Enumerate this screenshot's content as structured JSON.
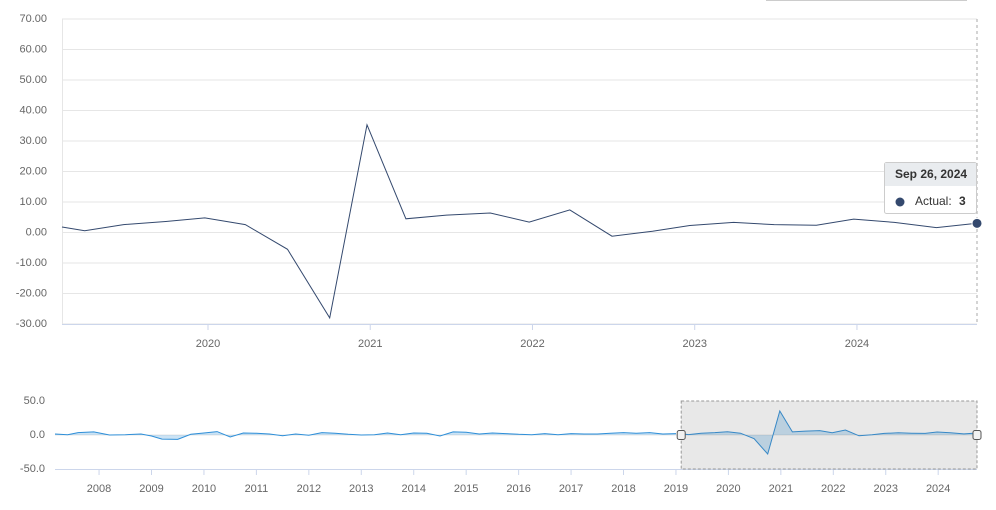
{
  "chart_data": [
    {
      "type": "line",
      "color": "#34496e",
      "x": [
        2019.1,
        2019.24,
        2019.48,
        2019.74,
        2019.98,
        2020.23,
        2020.49,
        2020.75,
        2020.98,
        2021.22,
        2021.47,
        2021.74,
        2021.98,
        2022.23,
        2022.49,
        2022.74,
        2022.97,
        2023.24,
        2023.49,
        2023.75,
        2023.98,
        2024.23,
        2024.49,
        2024.74
      ],
      "values": [
        1.8,
        0.6,
        2.6,
        3.6,
        4.8,
        2.6,
        -5.5,
        -28,
        35.3,
        4.5,
        5.7,
        6.4,
        3.4,
        7.4,
        -1.2,
        0.4,
        2.3,
        3.3,
        2.6,
        2.4,
        4.4,
        3.3,
        1.6,
        3
      ],
      "xlim": [
        2019.1,
        2024.74
      ],
      "xticks": [
        2020,
        2021,
        2022,
        2023,
        2024
      ],
      "ylim": [
        -30,
        70
      ],
      "yticks": [
        {
          "value": -30,
          "label": "-30.00"
        },
        {
          "value": -20,
          "label": "-20.00"
        },
        {
          "value": -10,
          "label": "-10.00"
        },
        {
          "value": 0,
          "label": "0.00"
        },
        {
          "value": 10,
          "label": "10.00"
        },
        {
          "value": 20,
          "label": "20.00"
        },
        {
          "value": 30,
          "label": "30.00"
        },
        {
          "value": 40,
          "label": "40.00"
        },
        {
          "value": 50,
          "label": "50.00"
        },
        {
          "value": 60,
          "label": "60.00"
        },
        {
          "value": 70,
          "label": "70.00"
        }
      ],
      "grid": true,
      "tooltip": {
        "date": "Sep 26, 2024",
        "label": "Actual:"
      }
    },
    {
      "type": "area",
      "color": "#2f8fd8",
      "x": [
        2007.16,
        2007.4,
        2007.6,
        2007.9,
        2008.2,
        2008.5,
        2008.8,
        2009.0,
        2009.2,
        2009.5,
        2009.75,
        2010.0,
        2010.25,
        2010.5,
        2010.75,
        2011.0,
        2011.25,
        2011.5,
        2011.75,
        2012.0,
        2012.25,
        2012.5,
        2012.75,
        2013.0,
        2013.25,
        2013.5,
        2013.75,
        2014.0,
        2014.25,
        2014.5,
        2014.75,
        2015.0,
        2015.25,
        2015.5,
        2015.75,
        2016.0,
        2016.25,
        2016.5,
        2016.75,
        2017.0,
        2017.25,
        2017.5,
        2017.75,
        2018.0,
        2018.25,
        2018.5,
        2018.75,
        2019.0
      ],
      "values": [
        1.5,
        0.5,
        3.5,
        4.5,
        0,
        0.5,
        1.5,
        -1.5,
        -6,
        -6.5,
        1,
        3,
        5,
        -3,
        3,
        2.5,
        1.5,
        -1,
        1.5,
        -0.5,
        3.5,
        2.5,
        1,
        0,
        0.5,
        3,
        0.5,
        3,
        2.5,
        -1.5,
        4.5,
        4,
        1.5,
        3,
        2,
        1,
        0.5,
        2,
        0.5,
        2,
        1.5,
        1.5,
        2.5,
        3.5,
        2.5,
        3.5,
        1.5,
        2
      ],
      "xlim": [
        2007.16,
        2024.74
      ],
      "xticks": [
        2008,
        2009,
        2010,
        2011,
        2012,
        2013,
        2014,
        2015,
        2016,
        2017,
        2018,
        2019,
        2020,
        2021,
        2022,
        2023,
        2024
      ],
      "ylim": [
        -50,
        50
      ],
      "yticks": [
        {
          "value": -50,
          "label": "-50.0"
        },
        {
          "value": 0,
          "label": "0.0"
        },
        {
          "value": 50,
          "label": "50.0"
        }
      ]
    }
  ]
}
